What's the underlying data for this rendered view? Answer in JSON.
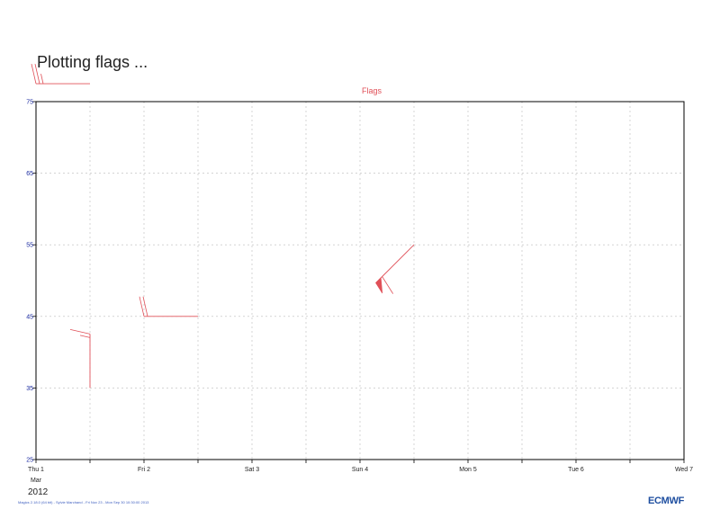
{
  "page": {
    "title": "Plotting flags ...",
    "year": "2012",
    "footer": "Magics 2.18.0 (64 bit) - Sylvie Marchand - Fri Nov 23 - Mon Sep 30 10:30:00 2013",
    "logo": "ECMWF"
  },
  "colors": {
    "flag": "#e05058",
    "axis": "#000000",
    "grid": "#bbbbbb",
    "y_tick_label": "#1a2aa0",
    "sunday_label": "#e01010"
  },
  "chart_data": {
    "type": "scatter",
    "title": "Flags",
    "xlabel": "",
    "ylabel": "",
    "grid": true,
    "xlim": [
      "2012-03-01",
      "2012-03-07"
    ],
    "ylim": [
      25,
      75
    ],
    "yticks": [
      25,
      35,
      45,
      55,
      65,
      75
    ],
    "xticks": [
      {
        "date": "2012-03-01",
        "label": "Thu 1",
        "sublabel": "Mar"
      },
      {
        "date": "2012-03-02",
        "label": "Fri 2"
      },
      {
        "date": "2012-03-03",
        "label": "Sat 3"
      },
      {
        "date": "2012-03-04",
        "label": "Sun 4",
        "highlight": true
      },
      {
        "date": "2012-03-05",
        "label": "Mon 5"
      },
      {
        "date": "2012-03-06",
        "label": "Tue 6"
      },
      {
        "date": "2012-03-07",
        "label": "Wed 7"
      }
    ],
    "series": [
      {
        "points": [
          {
            "date": "2012-03-01 12:00",
            "y": 35,
            "direction_deg": 360,
            "speed_kt": 15
          },
          {
            "date": "2012-03-02 12:00",
            "y": 45,
            "direction_deg": 270,
            "speed_kt": 20
          },
          {
            "date": "2012-03-04 12:00",
            "y": 55,
            "direction_deg": 225,
            "speed_kt": 60
          },
          {
            "date": "2012-03-01 12:00",
            "y": 77.5,
            "direction_deg": 270,
            "speed_kt": 25
          }
        ]
      }
    ]
  }
}
